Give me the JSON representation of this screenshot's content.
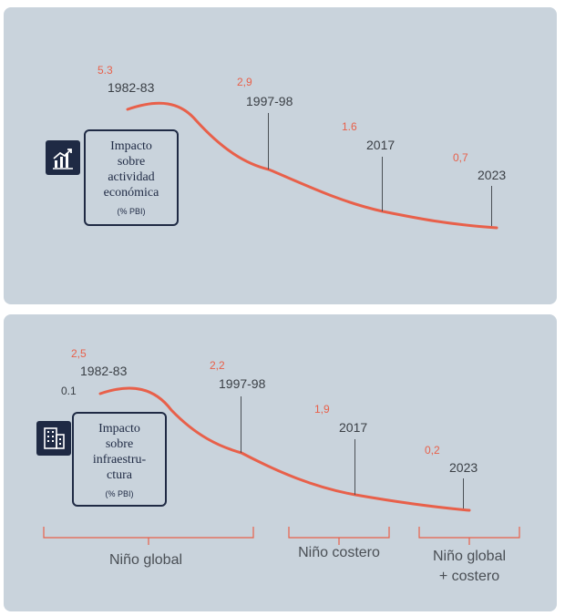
{
  "colors": {
    "panel": "#c9d3dc",
    "curve": "#e8604a",
    "navy": "#1f2a44",
    "text": "#3a3f45"
  },
  "chart_data": [
    {
      "type": "line",
      "title": "Impacto sobre actividad económica",
      "ylabel": "(% PBI)",
      "categories": [
        "1982-83",
        "1997-98",
        "2017",
        "2023"
      ],
      "values": [
        5.3,
        2.9,
        1.6,
        0.7
      ],
      "value_labels": [
        "5.3",
        "2,9",
        "1.6",
        "0,7"
      ]
    },
    {
      "type": "line",
      "title": "Impacto sobre infraestructura",
      "ylabel": "(% PBI)",
      "categories": [
        "1982-83",
        "1997-98",
        "2017",
        "2023"
      ],
      "values": [
        2.5,
        2.2,
        1.9,
        0.2
      ],
      "value_labels": [
        "2,5",
        "2,2",
        "1,9",
        "0,2"
      ],
      "extra_label": "0.1"
    }
  ],
  "top_card": {
    "lines": [
      "Impacto",
      "sobre",
      "actividad",
      "económica"
    ],
    "unit": "(% PBI)",
    "icon": "chart-growth-icon"
  },
  "bottom_card": {
    "lines": [
      "Impacto",
      "sobre",
      "infraestru-",
      "ctura"
    ],
    "unit": "(% PBI)",
    "icon": "building-icon"
  },
  "brackets": [
    {
      "label": "Niño global"
    },
    {
      "label": "Niño costero"
    },
    {
      "label_line1": "Niño global",
      "label_line2": "+ costero"
    }
  ]
}
